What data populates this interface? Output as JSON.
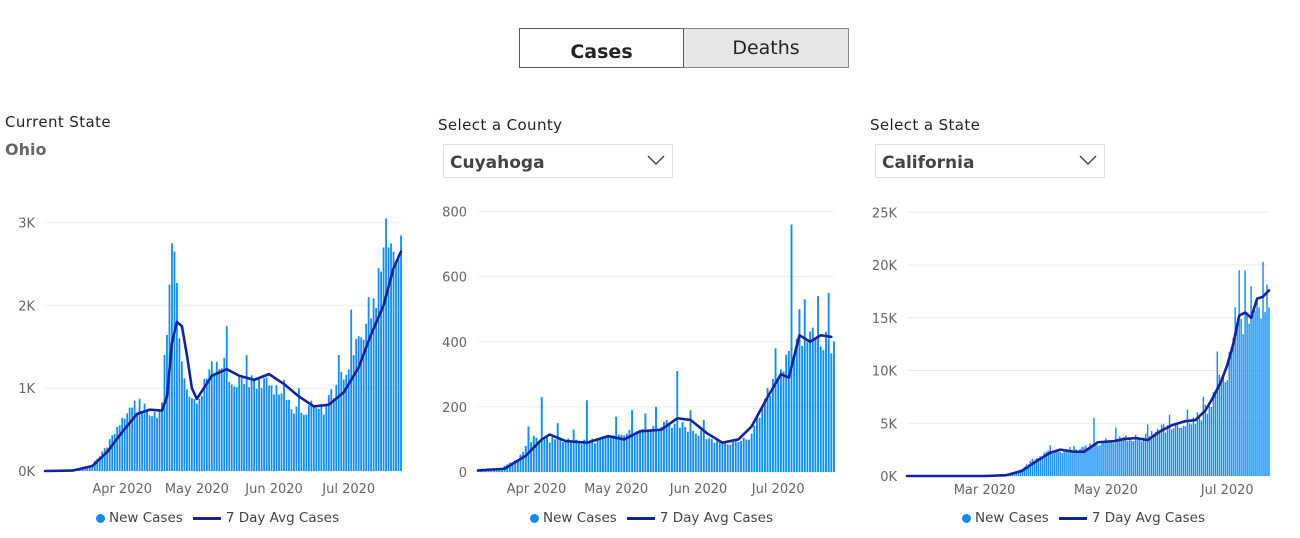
{
  "toggle": {
    "cases_label": "Cases",
    "deaths_label": "Deaths"
  },
  "colors": {
    "bar": "#118dff",
    "avg_line": "#12239e"
  },
  "panels": [
    {
      "header": "Current State",
      "value": "Ohio",
      "legend": {
        "bars": "New Cases",
        "line": "7 Day Avg Cases"
      }
    },
    {
      "header": "Select a County",
      "value": "Cuyahoga",
      "legend": {
        "bars": "New Cases",
        "line": "7 Day Avg Cases"
      }
    },
    {
      "header": "Select a State",
      "value": "California",
      "legend": {
        "bars": "New Cases",
        "line": "7 Day Avg Cases"
      }
    }
  ],
  "chart_data": [
    {
      "type": "bar",
      "title": "",
      "series_names": [
        "New Cases",
        "7 Day Avg Cases"
      ],
      "ylim": [
        0,
        3200
      ],
      "yticks": [
        {
          "label": "0K",
          "value": 0
        },
        {
          "label": "1K",
          "value": 1000
        },
        {
          "label": "2K",
          "value": 2000
        },
        {
          "label": "3K",
          "value": 3000
        }
      ],
      "xlim": [
        "2020-03-01",
        "2020-07-22"
      ],
      "xticks": [
        {
          "label": "Apr 2020",
          "date": "2020-04-01"
        },
        {
          "label": "May 2020",
          "date": "2020-05-01"
        },
        {
          "label": "Jun 2020",
          "date": "2020-06-01"
        },
        {
          "label": "Jul 2020",
          "date": "2020-07-01"
        }
      ],
      "grid": true,
      "legend_position": "bottom",
      "bar_start": "2020-03-09",
      "bar_keys": [
        [
          "2020-03-09",
          0
        ],
        [
          "2020-03-15",
          10
        ],
        [
          "2020-03-20",
          80
        ],
        [
          "2020-03-25",
          250
        ],
        [
          "2020-03-31",
          550
        ],
        [
          "2020-04-04",
          700
        ],
        [
          "2020-04-08",
          800
        ],
        [
          "2020-04-12",
          720
        ],
        [
          "2020-04-16",
          700
        ],
        [
          "2020-04-18",
          1100
        ],
        [
          "2020-04-20",
          2250
        ],
        [
          "2020-04-22",
          2650
        ],
        [
          "2020-04-24",
          1600
        ],
        [
          "2020-04-27",
          950
        ],
        [
          "2020-05-01",
          850
        ],
        [
          "2020-05-08",
          1300
        ],
        [
          "2020-05-12",
          1250
        ],
        [
          "2020-05-16",
          1050
        ],
        [
          "2020-05-22",
          1050
        ],
        [
          "2020-05-28",
          1100
        ],
        [
          "2020-06-03",
          950
        ],
        [
          "2020-06-09",
          750
        ],
        [
          "2020-06-15",
          750
        ],
        [
          "2020-06-21",
          750
        ],
        [
          "2020-06-25",
          950
        ],
        [
          "2020-06-30",
          1200
        ],
        [
          "2020-07-04",
          1600
        ],
        [
          "2020-07-08",
          1800
        ],
        [
          "2020-07-12",
          2100
        ],
        [
          "2020-07-16",
          2700
        ],
        [
          "2020-07-18",
          2900
        ],
        [
          "2020-07-20",
          2600
        ],
        [
          "2020-07-21",
          2600
        ]
      ],
      "bar_spikes": [
        [
          "2020-03-31",
          550
        ],
        [
          "2020-04-06",
          850
        ],
        [
          "2020-04-18",
          1400
        ],
        [
          "2020-04-20",
          2250
        ],
        [
          "2020-04-21",
          2750
        ],
        [
          "2020-04-22",
          2650
        ],
        [
          "2020-05-13",
          1750
        ],
        [
          "2020-05-21",
          1400
        ],
        [
          "2020-06-05",
          1100
        ],
        [
          "2020-06-11",
          1000
        ],
        [
          "2020-06-16",
          850
        ],
        [
          "2020-06-27",
          1400
        ],
        [
          "2020-07-02",
          1950
        ],
        [
          "2020-07-09",
          2100
        ],
        [
          "2020-07-13",
          2450
        ],
        [
          "2020-07-16",
          3050
        ],
        [
          "2020-07-17",
          2700
        ],
        [
          "2020-07-18",
          2750
        ],
        [
          "2020-07-19",
          2650
        ]
      ],
      "avg_line": [
        [
          "2020-03-01",
          0
        ],
        [
          "2020-03-12",
          5
        ],
        [
          "2020-03-20",
          60
        ],
        [
          "2020-03-26",
          230
        ],
        [
          "2020-04-01",
          470
        ],
        [
          "2020-04-07",
          690
        ],
        [
          "2020-04-12",
          740
        ],
        [
          "2020-04-17",
          730
        ],
        [
          "2020-04-19",
          900
        ],
        [
          "2020-04-21",
          1550
        ],
        [
          "2020-04-23",
          1800
        ],
        [
          "2020-04-25",
          1750
        ],
        [
          "2020-04-27",
          1400
        ],
        [
          "2020-04-29",
          1000
        ],
        [
          "2020-05-01",
          870
        ],
        [
          "2020-05-07",
          1150
        ],
        [
          "2020-05-13",
          1230
        ],
        [
          "2020-05-18",
          1150
        ],
        [
          "2020-05-24",
          1100
        ],
        [
          "2020-05-30",
          1170
        ],
        [
          "2020-06-05",
          1050
        ],
        [
          "2020-06-11",
          900
        ],
        [
          "2020-06-17",
          780
        ],
        [
          "2020-06-23",
          800
        ],
        [
          "2020-06-29",
          950
        ],
        [
          "2020-07-05",
          1250
        ],
        [
          "2020-07-10",
          1650
        ],
        [
          "2020-07-15",
          2000
        ],
        [
          "2020-07-19",
          2450
        ],
        [
          "2020-07-22",
          2650
        ]
      ]
    },
    {
      "type": "bar",
      "title": "",
      "series_names": [
        "New Cases",
        "7 Day Avg Cases"
      ],
      "ylim": [
        0,
        820
      ],
      "yticks": [
        {
          "label": "0",
          "value": 0
        },
        {
          "label": "200",
          "value": 200
        },
        {
          "label": "400",
          "value": 400
        },
        {
          "label": "600",
          "value": 600
        },
        {
          "label": "800",
          "value": 800
        }
      ],
      "xlim": [
        "2020-03-10",
        "2020-07-22"
      ],
      "xticks": [
        {
          "label": "Apr 2020",
          "date": "2020-04-01"
        },
        {
          "label": "May 2020",
          "date": "2020-05-01"
        },
        {
          "label": "Jun 2020",
          "date": "2020-06-01"
        },
        {
          "label": "Jul 2020",
          "date": "2020-07-01"
        }
      ],
      "grid": true,
      "legend_position": "bottom",
      "bar_start": "2020-03-10",
      "bar_keys": [
        [
          "2020-03-10",
          3
        ],
        [
          "2020-03-18",
          8
        ],
        [
          "2020-03-25",
          40
        ],
        [
          "2020-03-31",
          110
        ],
        [
          "2020-04-05",
          100
        ],
        [
          "2020-04-12",
          95
        ],
        [
          "2020-04-20",
          90
        ],
        [
          "2020-04-28",
          110
        ],
        [
          "2020-05-06",
          120
        ],
        [
          "2020-05-14",
          130
        ],
        [
          "2020-05-22",
          150
        ],
        [
          "2020-05-30",
          130
        ],
        [
          "2020-06-06",
          100
        ],
        [
          "2020-06-14",
          90
        ],
        [
          "2020-06-20",
          110
        ],
        [
          "2020-06-26",
          220
        ],
        [
          "2020-07-02",
          320
        ],
        [
          "2020-07-08",
          380
        ],
        [
          "2020-07-14",
          420
        ],
        [
          "2020-07-21",
          400
        ]
      ],
      "bar_spikes": [
        [
          "2020-03-29",
          140
        ],
        [
          "2020-04-03",
          230
        ],
        [
          "2020-04-09",
          150
        ],
        [
          "2020-04-15",
          130
        ],
        [
          "2020-04-20",
          220
        ],
        [
          "2020-05-01",
          170
        ],
        [
          "2020-05-07",
          190
        ],
        [
          "2020-05-12",
          180
        ],
        [
          "2020-05-16",
          200
        ],
        [
          "2020-05-20",
          160
        ],
        [
          "2020-05-24",
          310
        ],
        [
          "2020-05-29",
          190
        ],
        [
          "2020-06-03",
          160
        ],
        [
          "2020-06-30",
          380
        ],
        [
          "2020-07-04",
          360
        ],
        [
          "2020-07-06",
          760
        ],
        [
          "2020-07-09",
          500
        ],
        [
          "2020-07-11",
          530
        ],
        [
          "2020-07-16",
          540
        ],
        [
          "2020-07-20",
          550
        ]
      ],
      "avg_line": [
        [
          "2020-03-10",
          5
        ],
        [
          "2020-03-20",
          10
        ],
        [
          "2020-03-28",
          50
        ],
        [
          "2020-04-03",
          100
        ],
        [
          "2020-04-06",
          115
        ],
        [
          "2020-04-12",
          95
        ],
        [
          "2020-04-20",
          90
        ],
        [
          "2020-04-28",
          110
        ],
        [
          "2020-05-04",
          100
        ],
        [
          "2020-05-10",
          125
        ],
        [
          "2020-05-18",
          130
        ],
        [
          "2020-05-24",
          165
        ],
        [
          "2020-05-29",
          160
        ],
        [
          "2020-06-04",
          120
        ],
        [
          "2020-06-10",
          90
        ],
        [
          "2020-06-16",
          100
        ],
        [
          "2020-06-21",
          140
        ],
        [
          "2020-06-27",
          230
        ],
        [
          "2020-07-02",
          300
        ],
        [
          "2020-07-05",
          290
        ],
        [
          "2020-07-09",
          420
        ],
        [
          "2020-07-13",
          400
        ],
        [
          "2020-07-17",
          420
        ],
        [
          "2020-07-21",
          415
        ]
      ]
    },
    {
      "type": "bar",
      "title": "",
      "series_names": [
        "New Cases",
        "7 Day Avg Cases"
      ],
      "ylim": [
        0,
        25500
      ],
      "yticks": [
        {
          "label": "0K",
          "value": 0
        },
        {
          "label": "5K",
          "value": 5000
        },
        {
          "label": "10K",
          "value": 10000
        },
        {
          "label": "15K",
          "value": 15000
        },
        {
          "label": "20K",
          "value": 20000
        },
        {
          "label": "25K",
          "value": 25000
        }
      ],
      "xlim": [
        "2020-01-22",
        "2020-07-22"
      ],
      "xticks": [
        {
          "label": "Mar 2020",
          "date": "2020-03-01"
        },
        {
          "label": "May 2020",
          "date": "2020-05-01"
        },
        {
          "label": "Jul 2020",
          "date": "2020-07-01"
        }
      ],
      "grid": true,
      "legend_position": "bottom",
      "bar_start": "2020-03-01",
      "bar_keys": [
        [
          "2020-03-01",
          0
        ],
        [
          "2020-03-10",
          50
        ],
        [
          "2020-03-18",
          400
        ],
        [
          "2020-03-25",
          1500
        ],
        [
          "2020-04-01",
          2300
        ],
        [
          "2020-04-10",
          2400
        ],
        [
          "2020-04-20",
          2800
        ],
        [
          "2020-05-01",
          3300
        ],
        [
          "2020-05-10",
          3500
        ],
        [
          "2020-05-20",
          3600
        ],
        [
          "2020-05-30",
          4500
        ],
        [
          "2020-06-08",
          5000
        ],
        [
          "2020-06-16",
          5500
        ],
        [
          "2020-06-22",
          6500
        ],
        [
          "2020-06-26",
          8500
        ],
        [
          "2020-07-01",
          10000
        ],
        [
          "2020-07-06",
          13500
        ],
        [
          "2020-07-10",
          15000
        ],
        [
          "2020-07-16",
          15500
        ],
        [
          "2020-07-21",
          17000
        ]
      ],
      "bar_spikes": [
        [
          "2020-04-03",
          2900
        ],
        [
          "2020-04-25",
          5500
        ],
        [
          "2020-05-06",
          4600
        ],
        [
          "2020-05-22",
          4900
        ],
        [
          "2020-06-02",
          5800
        ],
        [
          "2020-06-11",
          6300
        ],
        [
          "2020-06-19",
          7500
        ],
        [
          "2020-06-26",
          11800
        ],
        [
          "2020-06-30",
          8900
        ],
        [
          "2020-07-05",
          16000
        ],
        [
          "2020-07-07",
          19500
        ],
        [
          "2020-07-10",
          19500
        ],
        [
          "2020-07-13",
          18000
        ],
        [
          "2020-07-16",
          16800
        ],
        [
          "2020-07-19",
          20300
        ]
      ],
      "avg_line": [
        [
          "2020-01-22",
          0
        ],
        [
          "2020-03-01",
          0
        ],
        [
          "2020-03-12",
          80
        ],
        [
          "2020-03-20",
          500
        ],
        [
          "2020-03-27",
          1400
        ],
        [
          "2020-04-03",
          2200
        ],
        [
          "2020-04-08",
          2500
        ],
        [
          "2020-04-15",
          2300
        ],
        [
          "2020-04-20",
          2300
        ],
        [
          "2020-04-27",
          3200
        ],
        [
          "2020-05-05",
          3300
        ],
        [
          "2020-05-10",
          3500
        ],
        [
          "2020-05-16",
          3600
        ],
        [
          "2020-05-22",
          3400
        ],
        [
          "2020-05-28",
          4200
        ],
        [
          "2020-06-03",
          4800
        ],
        [
          "2020-06-10",
          5200
        ],
        [
          "2020-06-15",
          5300
        ],
        [
          "2020-06-20",
          6200
        ],
        [
          "2020-06-24",
          7500
        ],
        [
          "2020-06-28",
          9000
        ],
        [
          "2020-07-01",
          10500
        ],
        [
          "2020-07-04",
          12500
        ],
        [
          "2020-07-07",
          15200
        ],
        [
          "2020-07-10",
          15500
        ],
        [
          "2020-07-13",
          15000
        ],
        [
          "2020-07-16",
          16800
        ],
        [
          "2020-07-19",
          17000
        ],
        [
          "2020-07-22",
          17600
        ]
      ]
    }
  ]
}
